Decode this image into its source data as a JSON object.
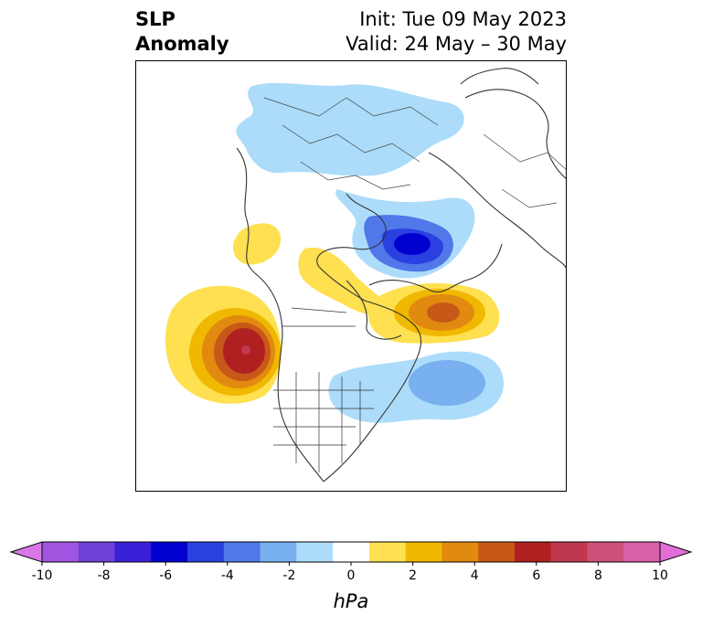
{
  "title": {
    "line1": "SLP",
    "line2": "Anomaly",
    "init": "Init: Tue 09 May 2023",
    "valid": "Valid: 24 May – 30 May"
  },
  "colorbar": {
    "unit": "hPa",
    "ticks": [
      "-10",
      "-8",
      "-6",
      "-4",
      "-2",
      "0",
      "2",
      "4",
      "6",
      "8",
      "10"
    ],
    "colors": [
      "#d878e8",
      "#a055e0",
      "#7040d8",
      "#3a20d8",
      "#0000d0",
      "#2a40e0",
      "#5078e8",
      "#78b0f0",
      "#acdcfa",
      "#ffffff",
      "#ffe050",
      "#f0b800",
      "#e08a10",
      "#c85818",
      "#b02020",
      "#c03850",
      "#cc5078",
      "#d860a8",
      "#e070d8"
    ],
    "extend_low_color": "#d878e8",
    "extend_high_color": "#e070d8"
  }
}
